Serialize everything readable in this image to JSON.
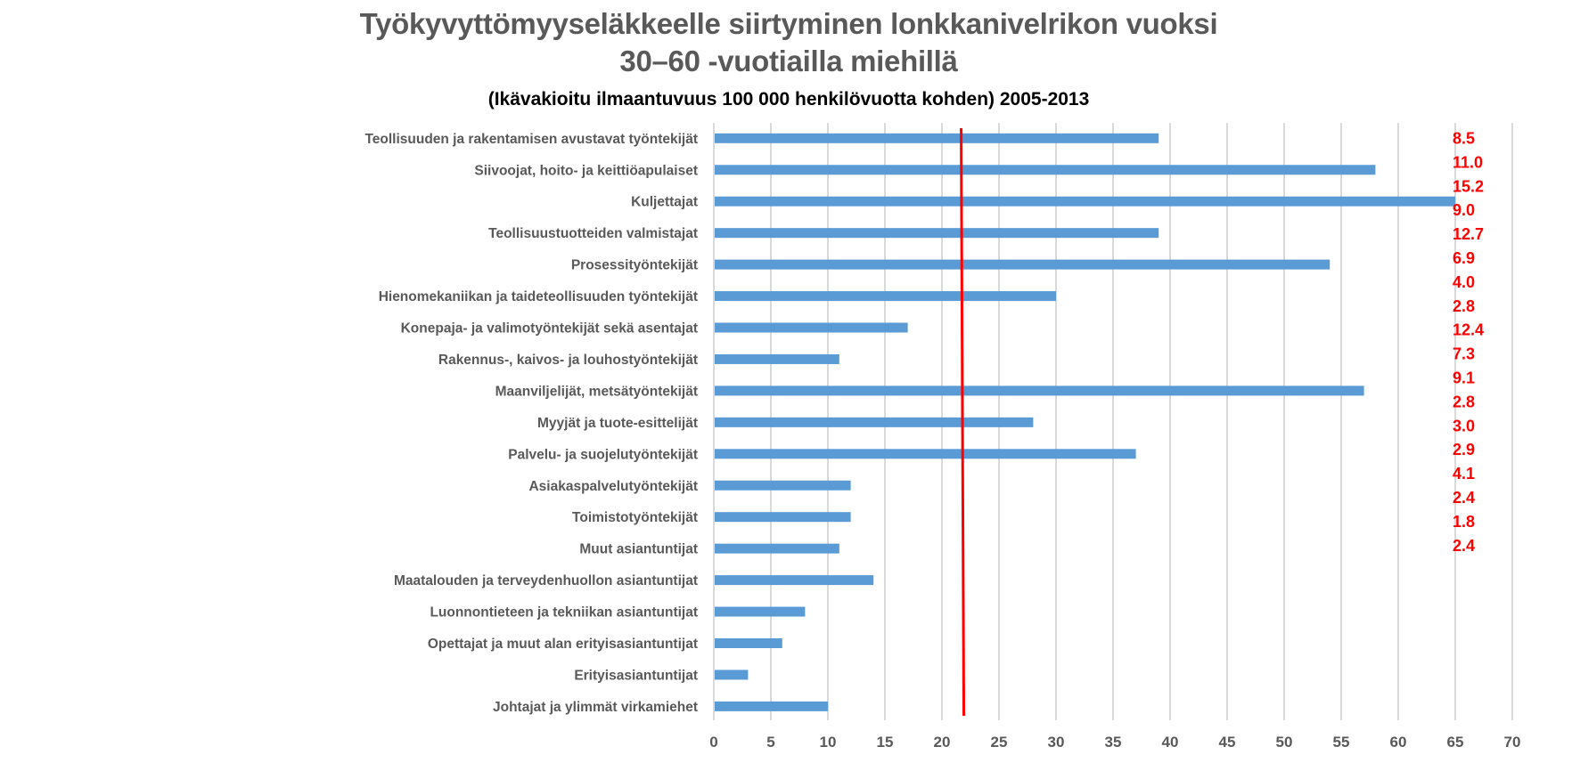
{
  "chart_data": {
    "type": "bar",
    "orientation": "horizontal",
    "title": "Työkyvyttömyyseläkkeelle siirtyminen lonkkanivelrikon vuoksi",
    "title_line2": "30–60 -vuotiailla miehillä",
    "subtitle": "(Ikävakioitu ilmaantuvuus 100 000 henkilövuotta kohden) 2005-2013",
    "xlabel": "",
    "ylabel": "",
    "xlim": [
      0,
      70
    ],
    "xticks": [
      "0",
      "5",
      "10",
      "15",
      "20",
      "25",
      "30",
      "35",
      "40",
      "45",
      "50",
      "55",
      "60",
      "65",
      "70"
    ],
    "grid": "vertical",
    "categories": [
      "Teollisuuden ja rakentamisen avustavat työntekijät",
      "Siivoojat, hoito- ja keittiöapulaiset",
      "Kuljettajat",
      "Teollisuustuotteiden valmistajat",
      "Prosessityöntekijät",
      "Hienomekaniikan ja taideteollisuuden työntekijät",
      "Konepaja- ja valimotyöntekijät sekä asentajat",
      "Rakennus-, kaivos- ja louhostyöntekijät",
      "Maanviljelijät, metsätyöntekijät ",
      "Myyjät ja tuote-esittelijät",
      "Palvelu- ja suojelutyöntekijät",
      "Asiakaspalvelutyöntekijät",
      "Toimistotyöntekijät",
      "Muut asiantuntijat",
      "Maatalouden ja terveydenhuollon asiantuntijat",
      "Luonnontieteen ja tekniikan asiantuntijat",
      "Opettajat ja muut alan erityisasiantuntijat",
      "Erityisasiantuntijat",
      "Johtajat ja ylimmät virkamiehet"
    ],
    "series": [
      {
        "name": "Ilmaantuvuus",
        "color": "#5b9bd5",
        "values": [
          39,
          58,
          65,
          39,
          54,
          30,
          17,
          11,
          57,
          28,
          37,
          12,
          12,
          11,
          14,
          8,
          6,
          3,
          10
        ]
      }
    ],
    "reference_line": {
      "value": 21.8,
      "color": "#ff0000"
    },
    "annotations": {
      "color": "#ff0000",
      "labels": [
        "8.5",
        "11.0",
        "15.2",
        "9.0",
        "12.7",
        "6.9",
        "4.0",
        "2.8",
        "12.4",
        "7.3",
        "9.1",
        "2.8",
        "3.0",
        "2.9",
        "4.1",
        "2.4",
        "1.8",
        "2.4"
      ]
    }
  }
}
